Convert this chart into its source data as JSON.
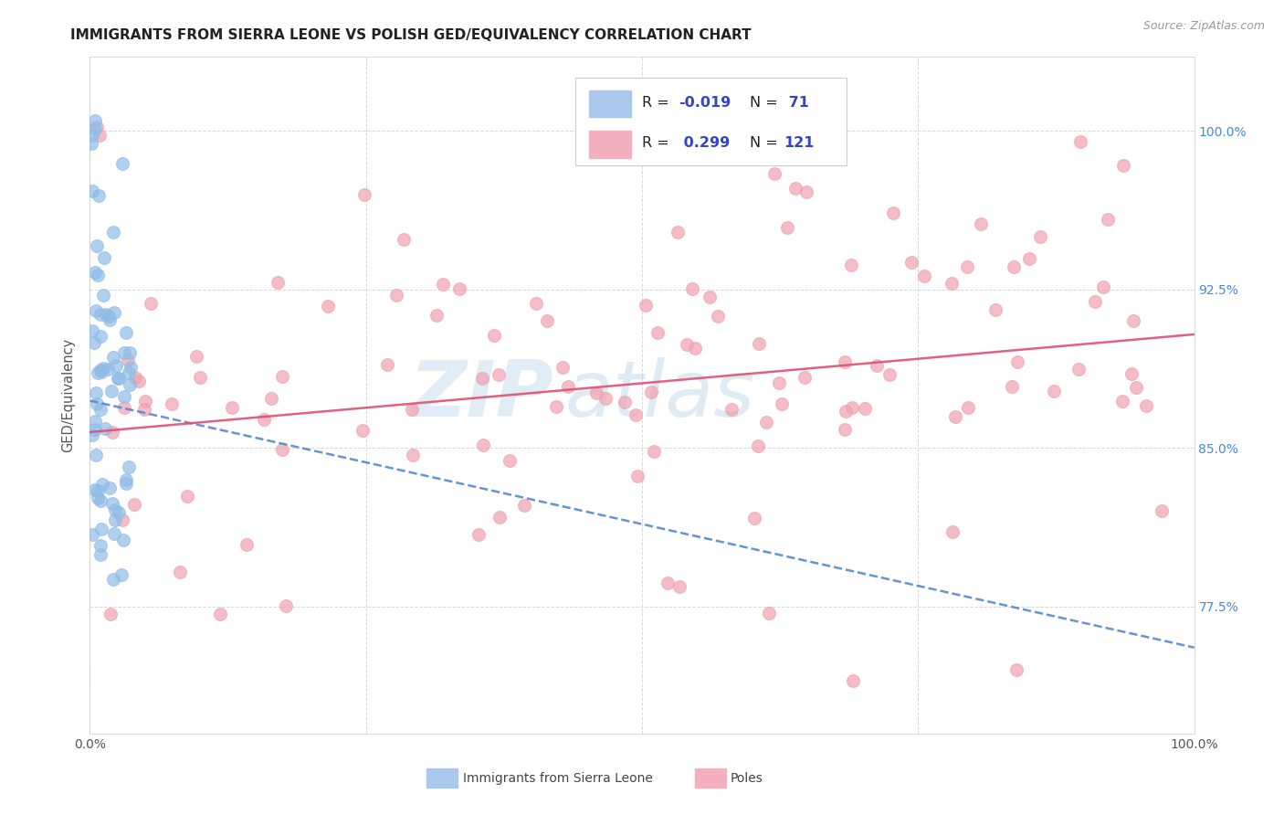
{
  "title": "IMMIGRANTS FROM SIERRA LEONE VS POLISH GED/EQUIVALENCY CORRELATION CHART",
  "source": "Source: ZipAtlas.com",
  "ylabel": "GED/Equivalency",
  "ytick_labels": [
    "77.5%",
    "85.0%",
    "92.5%",
    "100.0%"
  ],
  "ytick_values": [
    0.775,
    0.85,
    0.925,
    1.0
  ],
  "xlim": [
    0.0,
    1.0
  ],
  "ylim": [
    0.715,
    1.035
  ],
  "sierra_leone_color": "#90bce8",
  "poles_color": "#f0a0b0",
  "sierra_leone_trendline_color": "#5588cc",
  "poles_trendline_color": "#e05070",
  "sierra_leone_R": -0.019,
  "poles_R": 0.299,
  "background_color": "#ffffff",
  "grid_color": "#d8d8d8",
  "watermark_zip": "ZIP",
  "watermark_atlas": "atlas",
  "legend_r1": "R = ",
  "legend_r1_val": "-0.019",
  "legend_n1": "N = ",
  "legend_n1_val": " 71",
  "legend_r2_val": " 0.299",
  "legend_n2_val": "121",
  "legend_color_val": "#3344cc",
  "legend_color_text": "#222222",
  "legend_patch1": "#aac8ec",
  "legend_patch2": "#f5b0c0",
  "bottom_legend_label1": "Immigrants from Sierra Leone",
  "bottom_legend_label2": "Poles"
}
